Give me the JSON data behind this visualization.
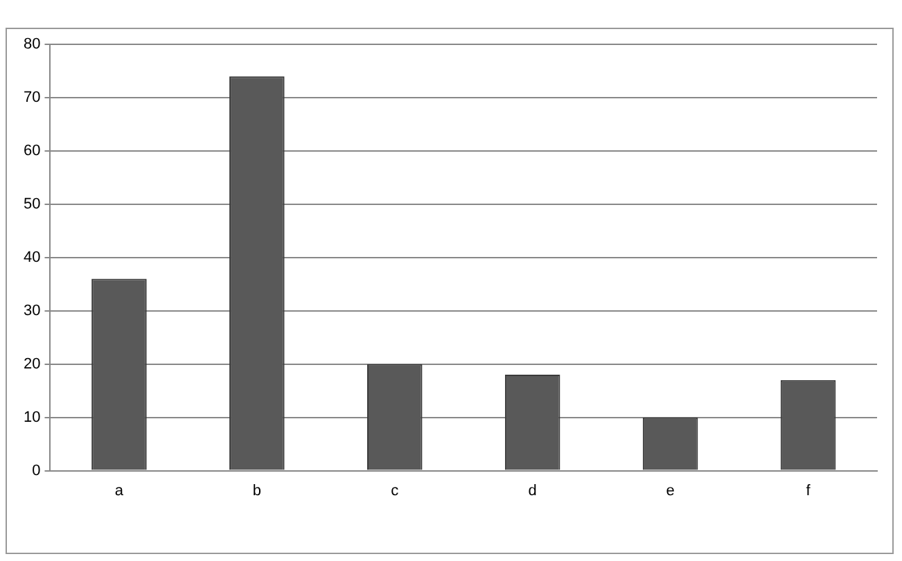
{
  "chart_data": {
    "type": "bar",
    "categories": [
      "a",
      "b",
      "c",
      "d",
      "e",
      "f"
    ],
    "values": [
      36,
      74,
      20,
      18,
      10,
      17
    ],
    "color": "#595959",
    "ylim": [
      0,
      80
    ],
    "yticks": [
      0,
      10,
      20,
      30,
      40,
      50,
      60,
      70,
      80
    ],
    "grid": "y",
    "legend": false
  }
}
